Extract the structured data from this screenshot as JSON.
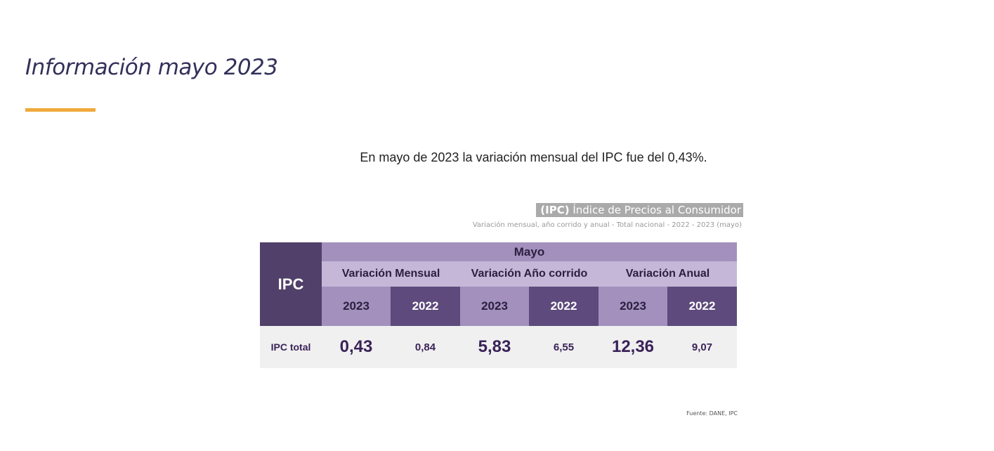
{
  "section": {
    "title": "Información mayo 2023"
  },
  "intro_text": "En mayo de 2023 la variación mensual del IPC fue del 0,43%.",
  "infographic": {
    "header_bold": "(IPC)",
    "header_rest": " Índice de Precios al Consumidor",
    "subtitle": "Variación mensual, año corrido y anual - Total nacional  - 2022 - 2023 (mayo)",
    "source": "Fuente: DANE, IPC",
    "table": {
      "corner_label": "IPC",
      "month": "Mayo",
      "periods": [
        "Variación Mensual",
        "Variación Año corrido",
        "Variación Anual"
      ],
      "years": [
        "2023",
        "2022",
        "2023",
        "2022",
        "2023",
        "2022"
      ],
      "row_label": "IPC total",
      "values": [
        "0,43",
        "0,84",
        "5,83",
        "6,55",
        "12,36",
        "9,07"
      ]
    }
  },
  "colors": {
    "title": "#33305a",
    "accent_line": "#efa93b",
    "table_dark": "#514069",
    "table_mid": "#a390bd",
    "table_light": "#c4b7d8",
    "value_text": "#3a2358"
  }
}
